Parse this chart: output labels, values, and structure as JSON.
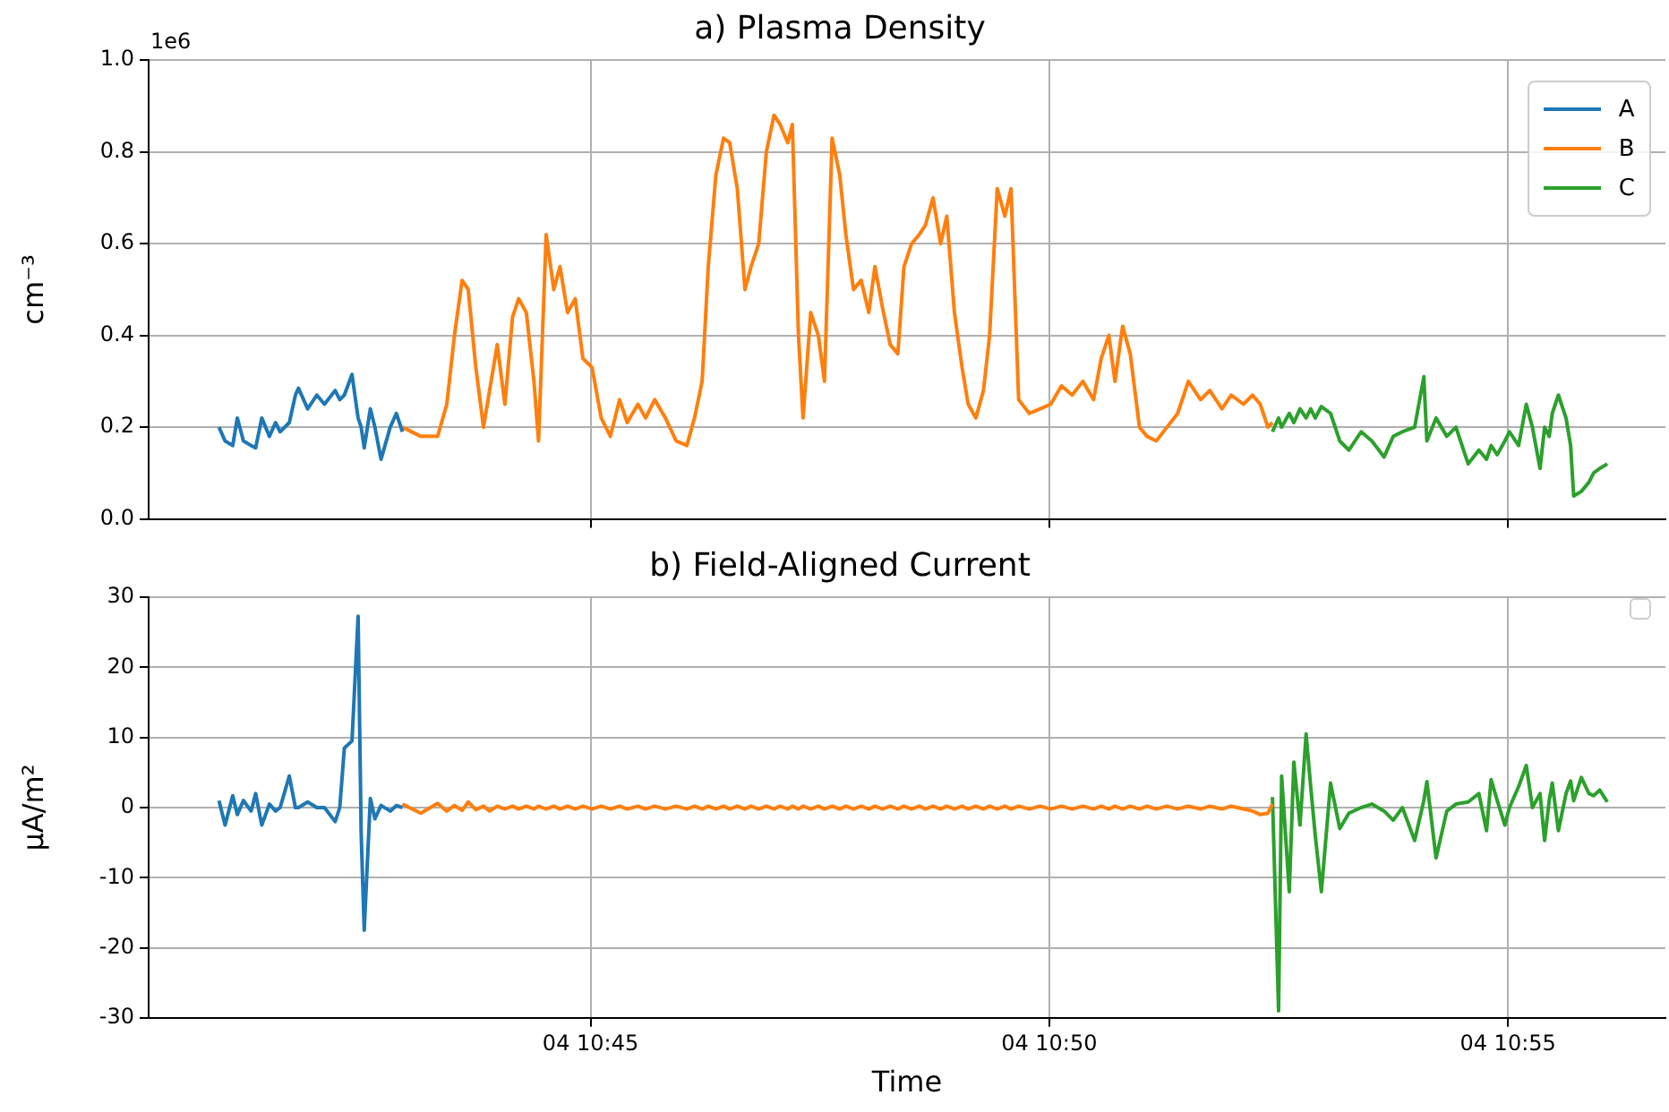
{
  "chart_data": [
    {
      "type": "line",
      "title": "a) Plasma Density",
      "ylabel": "cm⁻³",
      "annotations": [
        "1e6"
      ],
      "legend": "top right",
      "grid": true,
      "tick_labels": "y",
      "xlim": [
        "--01-04T10:40:11",
        "--01-04T10:56:43"
      ],
      "xticks": [
        {
          "value": "--01-04T10:45",
          "label": "04 10:45"
        },
        {
          "value": "--01-04T10:50",
          "label": "04 10:50"
        },
        {
          "value": "--01-04T10:55",
          "label": "04 10:55"
        }
      ],
      "ylim": [
        0,
        1
      ],
      "yticks": [
        {
          "value": 0,
          "label": "0.0"
        },
        0.2,
        0.4,
        0.6,
        0.8,
        {
          "value": 1,
          "label": "1.0"
        }
      ],
      "series": [
        {
          "name": "A",
          "color": "#1f77b4",
          "x": [
            "--01-04T10:40:57",
            "--01-04T10:41:01",
            "--01-04T10:41:06",
            "--01-04T10:41:09",
            "--01-04T10:41:13",
            "--01-04T10:41:18",
            "--01-04T10:41:21",
            "--01-04T10:41:25",
            "--01-04T10:41:30",
            "--01-04T10:41:34",
            "--01-04T10:41:37",
            "--01-04T10:41:43",
            "--01-04T10:41:47",
            "--01-04T10:41:49",
            "--01-04T10:41:55",
            "--01-04T10:42:01",
            "--01-04T10:42:06",
            "--01-04T10:42:13",
            "--01-04T10:42:16",
            "--01-04T10:42:19",
            "--01-04T10:42:24",
            "--01-04T10:42:28",
            "--01-04T10:42:30",
            "--01-04T10:42:32",
            "--01-04T10:42:36",
            "--01-04T10:42:39",
            "--01-04T10:42:43",
            "--01-04T10:42:49",
            "--01-04T10:42:53",
            "--01-04T10:42:57"
          ],
          "values": [
            0.2,
            0.17,
            0.16,
            0.22,
            0.17,
            0.16,
            0.155,
            0.22,
            0.18,
            0.21,
            0.19,
            0.21,
            0.27,
            0.285,
            0.24,
            0.27,
            0.25,
            0.28,
            0.26,
            0.27,
            0.315,
            0.22,
            0.2,
            0.155,
            0.24,
            0.2,
            0.13,
            0.2,
            0.23,
            0.19
          ]
        },
        {
          "name": "B",
          "color": "#ff7f0e",
          "x": [
            "--01-04T10:42:57",
            "--01-04T10:43:09",
            "--01-04T10:43:20",
            "--01-04T10:43:26",
            "--01-04T10:43:31",
            "--01-04T10:43:36",
            "--01-04T10:43:40",
            "--01-04T10:43:45",
            "--01-04T10:43:50",
            "--01-04T10:43:54",
            "--01-04T10:43:59",
            "--01-04T10:44:04",
            "--01-04T10:44:09",
            "--01-04T10:44:13",
            "--01-04T10:44:18",
            "--01-04T10:44:23",
            "--01-04T10:44:26",
            "--01-04T10:44:31",
            "--01-04T10:44:36",
            "--01-04T10:44:40",
            "--01-04T10:44:45",
            "--01-04T10:44:50",
            "--01-04T10:44:55",
            "--01-04T10:45:01",
            "--01-04T10:45:07",
            "--01-04T10:45:13",
            "--01-04T10:45:19",
            "--01-04T10:45:24",
            "--01-04T10:45:31",
            "--01-04T10:45:36",
            "--01-04T10:45:42",
            "--01-04T10:45:49",
            "--01-04T10:45:56",
            "--01-04T10:46:03",
            "--01-04T10:46:08",
            "--01-04T10:46:13",
            "--01-04T10:46:17",
            "--01-04T10:46:22",
            "--01-04T10:46:27",
            "--01-04T10:46:31",
            "--01-04T10:46:36",
            "--01-04T10:46:41",
            "--01-04T10:46:45",
            "--01-04T10:46:50",
            "--01-04T10:46:55",
            "--01-04T10:47:00",
            "--01-04T10:47:04",
            "--01-04T10:47:09",
            "--01-04T10:47:12",
            "--01-04T10:47:16",
            "--01-04T10:47:19",
            "--01-04T10:47:24",
            "--01-04T10:47:29",
            "--01-04T10:47:33",
            "--01-04T10:47:38",
            "--01-04T10:47:43",
            "--01-04T10:47:47",
            "--01-04T10:47:52",
            "--01-04T10:47:57",
            "--01-04T10:48:02",
            "--01-04T10:48:06",
            "--01-04T10:48:11",
            "--01-04T10:48:16",
            "--01-04T10:48:21",
            "--01-04T10:48:25",
            "--01-04T10:48:30",
            "--01-04T10:48:35",
            "--01-04T10:48:39",
            "--01-04T10:48:44",
            "--01-04T10:48:49",
            "--01-04T10:48:53",
            "--01-04T10:48:58",
            "--01-04T10:49:03",
            "--01-04T10:49:07",
            "--01-04T10:49:12",
            "--01-04T10:49:17",
            "--01-04T10:49:21",
            "--01-04T10:49:26",
            "--01-04T10:49:31",
            "--01-04T10:49:35",
            "--01-04T10:49:40",
            "--01-04T10:49:47",
            "--01-04T10:49:54",
            "--01-04T10:50:01",
            "--01-04T10:50:08",
            "--01-04T10:50:15",
            "--01-04T10:50:22",
            "--01-04T10:50:29",
            "--01-04T10:50:34",
            "--01-04T10:50:39",
            "--01-04T10:50:43",
            "--01-04T10:50:48",
            "--01-04T10:50:53",
            "--01-04T10:50:59",
            "--01-04T10:51:04",
            "--01-04T10:51:10",
            "--01-04T10:51:17",
            "--01-04T10:51:24",
            "--01-04T10:51:31",
            "--01-04T10:51:39",
            "--01-04T10:51:45",
            "--01-04T10:51:53",
            "--01-04T10:51:59",
            "--01-04T10:52:07",
            "--01-04T10:52:13",
            "--01-04T10:52:18",
            "--01-04T10:52:23",
            "--01-04T10:52:26"
          ],
          "values": [
            0.2,
            0.18,
            0.18,
            0.25,
            0.4,
            0.52,
            0.5,
            0.33,
            0.2,
            0.28,
            0.38,
            0.25,
            0.44,
            0.48,
            0.45,
            0.3,
            0.17,
            0.62,
            0.5,
            0.55,
            0.45,
            0.48,
            0.35,
            0.33,
            0.22,
            0.18,
            0.26,
            0.21,
            0.25,
            0.22,
            0.26,
            0.22,
            0.17,
            0.16,
            0.22,
            0.3,
            0.55,
            0.75,
            0.83,
            0.82,
            0.72,
            0.5,
            0.55,
            0.6,
            0.8,
            0.88,
            0.86,
            0.82,
            0.86,
            0.4,
            0.22,
            0.45,
            0.4,
            0.3,
            0.83,
            0.75,
            0.62,
            0.5,
            0.52,
            0.45,
            0.55,
            0.46,
            0.38,
            0.36,
            0.55,
            0.6,
            0.62,
            0.64,
            0.7,
            0.6,
            0.66,
            0.45,
            0.33,
            0.25,
            0.22,
            0.28,
            0.4,
            0.72,
            0.66,
            0.72,
            0.26,
            0.23,
            0.24,
            0.25,
            0.29,
            0.27,
            0.3,
            0.26,
            0.35,
            0.4,
            0.3,
            0.42,
            0.36,
            0.2,
            0.18,
            0.17,
            0.2,
            0.23,
            0.3,
            0.26,
            0.28,
            0.24,
            0.27,
            0.25,
            0.27,
            0.25,
            0.2,
            0.21
          ]
        },
        {
          "name": "C",
          "color": "#2ca02c",
          "x": [
            "--01-04T10:52:26",
            "--01-04T10:52:30",
            "--01-04T10:52:32",
            "--01-04T10:52:37",
            "--01-04T10:52:40",
            "--01-04T10:52:44",
            "--01-04T10:52:48",
            "--01-04T10:52:51",
            "--01-04T10:52:54",
            "--01-04T10:52:58",
            "--01-04T10:53:04",
            "--01-04T10:53:10",
            "--01-04T10:53:16",
            "--01-04T10:53:24",
            "--01-04T10:53:31",
            "--01-04T10:53:39",
            "--01-04T10:53:45",
            "--01-04T10:53:51",
            "--01-04T10:53:59",
            "--01-04T10:54:05",
            "--01-04T10:54:07",
            "--01-04T10:54:13",
            "--01-04T10:54:20",
            "--01-04T10:54:26",
            "--01-04T10:54:34",
            "--01-04T10:54:41",
            "--01-04T10:54:46",
            "--01-04T10:54:49",
            "--01-04T10:54:53",
            "--01-04T10:54:58",
            "--01-04T10:55:01",
            "--01-04T10:55:07",
            "--01-04T10:55:12",
            "--01-04T10:55:16",
            "--01-04T10:55:21",
            "--01-04T10:55:24",
            "--01-04T10:55:27",
            "--01-04T10:55:29",
            "--01-04T10:55:33",
            "--01-04T10:55:38",
            "--01-04T10:55:41",
            "--01-04T10:55:43",
            "--01-04T10:55:48",
            "--01-04T10:55:53",
            "--01-04T10:55:56",
            "--01-04T10:56:00",
            "--01-04T10:56:05"
          ],
          "values": [
            0.19,
            0.22,
            0.2,
            0.23,
            0.21,
            0.24,
            0.22,
            0.24,
            0.22,
            0.245,
            0.23,
            0.17,
            0.15,
            0.19,
            0.17,
            0.135,
            0.18,
            0.19,
            0.2,
            0.31,
            0.17,
            0.22,
            0.18,
            0.2,
            0.12,
            0.15,
            0.13,
            0.16,
            0.14,
            0.17,
            0.19,
            0.16,
            0.25,
            0.2,
            0.11,
            0.2,
            0.18,
            0.23,
            0.27,
            0.22,
            0.16,
            0.05,
            0.06,
            0.08,
            0.1,
            0.11,
            0.12
          ]
        }
      ]
    },
    {
      "type": "line",
      "title": "b) Field-Aligned Current",
      "xlabel": "Time",
      "ylabel": "μA/m²",
      "grid": true,
      "xlim": [
        "--01-04T10:40:11",
        "--01-04T10:56:43"
      ],
      "xticks": [
        {
          "value": "--01-04T10:45",
          "label": "04 10:45"
        },
        {
          "value": "--01-04T10:50",
          "label": "04 10:50"
        },
        {
          "value": "--01-04T10:55",
          "label": "04 10:55"
        }
      ],
      "ylim": [
        -30,
        30
      ],
      "yticks": [
        -30,
        -20,
        -10,
        0,
        10,
        20,
        30
      ],
      "series": [
        {
          "color": "#1f77b4",
          "x": [
            "--01-04T10:40:57",
            "--01-04T10:41:01",
            "--01-04T10:41:06",
            "--01-04T10:41:09",
            "--01-04T10:41:13",
            "--01-04T10:41:18",
            "--01-04T10:41:21",
            "--01-04T10:41:25",
            "--01-04T10:41:30",
            "--01-04T10:41:34",
            "--01-04T10:41:37",
            "--01-04T10:41:43",
            "--01-04T10:41:47",
            "--01-04T10:41:49",
            "--01-04T10:41:55",
            "--01-04T10:42:01",
            "--01-04T10:42:06",
            "--01-04T10:42:13",
            "--01-04T10:42:16",
            "--01-04T10:42:19",
            "--01-04T10:42:24",
            "--01-04T10:42:28",
            "--01-04T10:42:30",
            "--01-04T10:42:32",
            "--01-04T10:42:36",
            "--01-04T10:42:39",
            "--01-04T10:42:43",
            "--01-04T10:42:49",
            "--01-04T10:42:53",
            "--01-04T10:42:57"
          ],
          "values": [
            1,
            -2.5,
            1.7,
            -1,
            1,
            -0.5,
            2,
            -2.5,
            0.5,
            -0.5,
            0,
            4.5,
            0,
            0,
            0.8,
            0,
            0,
            -2,
            0,
            8.5,
            9.5,
            27.3,
            -3.7,
            -17.5,
            1.3,
            -1.6,
            0.3,
            -0.5,
            0.3,
            0
          ]
        },
        {
          "color": "#ff7f0e",
          "x": [
            "--01-04T10:42:57",
            "--01-04T10:43:09",
            "--01-04T10:43:20",
            "--01-04T10:43:26",
            "--01-04T10:43:31",
            "--01-04T10:43:36",
            "--01-04T10:43:40",
            "--01-04T10:43:45",
            "--01-04T10:43:50",
            "--01-04T10:43:54",
            "--01-04T10:43:59",
            "--01-04T10:44:04",
            "--01-04T10:44:09",
            "--01-04T10:44:13",
            "--01-04T10:44:18",
            "--01-04T10:44:23",
            "--01-04T10:44:26",
            "--01-04T10:44:31",
            "--01-04T10:44:36",
            "--01-04T10:44:40",
            "--01-04T10:44:45",
            "--01-04T10:44:50",
            "--01-04T10:44:55",
            "--01-04T10:45:01",
            "--01-04T10:45:07",
            "--01-04T10:45:13",
            "--01-04T10:45:19",
            "--01-04T10:45:24",
            "--01-04T10:45:31",
            "--01-04T10:45:36",
            "--01-04T10:45:42",
            "--01-04T10:45:49",
            "--01-04T10:45:56",
            "--01-04T10:46:03",
            "--01-04T10:46:08",
            "--01-04T10:46:13",
            "--01-04T10:46:17",
            "--01-04T10:46:22",
            "--01-04T10:46:27",
            "--01-04T10:46:31",
            "--01-04T10:46:36",
            "--01-04T10:46:41",
            "--01-04T10:46:45",
            "--01-04T10:46:50",
            "--01-04T10:46:55",
            "--01-04T10:47:00",
            "--01-04T10:47:04",
            "--01-04T10:47:09",
            "--01-04T10:47:12",
            "--01-04T10:47:16",
            "--01-04T10:47:19",
            "--01-04T10:47:24",
            "--01-04T10:47:29",
            "--01-04T10:47:33",
            "--01-04T10:47:38",
            "--01-04T10:47:43",
            "--01-04T10:47:47",
            "--01-04T10:47:52",
            "--01-04T10:47:57",
            "--01-04T10:48:02",
            "--01-04T10:48:06",
            "--01-04T10:48:11",
            "--01-04T10:48:16",
            "--01-04T10:48:21",
            "--01-04T10:48:25",
            "--01-04T10:48:30",
            "--01-04T10:48:35",
            "--01-04T10:48:39",
            "--01-04T10:48:44",
            "--01-04T10:48:49",
            "--01-04T10:48:53",
            "--01-04T10:48:58",
            "--01-04T10:49:03",
            "--01-04T10:49:07",
            "--01-04T10:49:12",
            "--01-04T10:49:17",
            "--01-04T10:49:21",
            "--01-04T10:49:26",
            "--01-04T10:49:31",
            "--01-04T10:49:35",
            "--01-04T10:49:40",
            "--01-04T10:49:47",
            "--01-04T10:49:54",
            "--01-04T10:50:01",
            "--01-04T10:50:08",
            "--01-04T10:50:15",
            "--01-04T10:50:22",
            "--01-04T10:50:29",
            "--01-04T10:50:34",
            "--01-04T10:50:39",
            "--01-04T10:50:43",
            "--01-04T10:50:48",
            "--01-04T10:50:53",
            "--01-04T10:50:59",
            "--01-04T10:51:04",
            "--01-04T10:51:10",
            "--01-04T10:51:17",
            "--01-04T10:51:24",
            "--01-04T10:51:31",
            "--01-04T10:51:39",
            "--01-04T10:51:45",
            "--01-04T10:51:53",
            "--01-04T10:51:59",
            "--01-04T10:52:07",
            "--01-04T10:52:13",
            "--01-04T10:52:18",
            "--01-04T10:52:23",
            "--01-04T10:52:26"
          ],
          "values": [
            0.5,
            -0.8,
            0.6,
            -0.5,
            0.3,
            -0.4,
            0.8,
            -0.3,
            0.2,
            -0.5,
            0.2,
            -0.2,
            0.2,
            -0.2,
            0.2,
            -0.2,
            0.2,
            -0.2,
            0.2,
            -0.2,
            0.2,
            -0.2,
            0.2,
            -0.2,
            0.2,
            -0.2,
            0.2,
            -0.2,
            0.2,
            -0.2,
            0.2,
            -0.2,
            0.2,
            -0.2,
            0.2,
            -0.2,
            0.2,
            -0.2,
            0.2,
            -0.2,
            0.2,
            -0.2,
            0.2,
            -0.2,
            0.2,
            -0.2,
            0.2,
            -0.2,
            0.2,
            -0.2,
            0.2,
            -0.2,
            0.2,
            -0.2,
            0.2,
            -0.2,
            0.2,
            -0.2,
            0.2,
            -0.2,
            0.2,
            -0.2,
            0.2,
            -0.2,
            0.2,
            -0.2,
            0.2,
            -0.2,
            0.2,
            -0.2,
            0.2,
            -0.2,
            0.2,
            -0.2,
            0.2,
            -0.2,
            0.2,
            -0.2,
            0.2,
            -0.2,
            0.2,
            -0.2,
            0.2,
            -0.2,
            0.2,
            -0.2,
            0.2,
            -0.2,
            0.2,
            -0.2,
            0.2,
            -0.2,
            0.2,
            -0.2,
            0.2,
            -0.2,
            0.2,
            -0.2,
            0.2,
            -0.2,
            0.2,
            -0.2,
            0.2,
            -0.2,
            -0.5,
            -1,
            -0.8,
            0.5
          ]
        },
        {
          "color": "#2ca02c",
          "x": [
            "--01-04T10:52:26",
            "--01-04T10:52:30",
            "--01-04T10:52:32",
            "--01-04T10:52:37",
            "--01-04T10:52:40",
            "--01-04T10:52:44",
            "--01-04T10:52:48",
            "--01-04T10:52:51",
            "--01-04T10:52:54",
            "--01-04T10:52:58",
            "--01-04T10:53:04",
            "--01-04T10:53:10",
            "--01-04T10:53:16",
            "--01-04T10:53:24",
            "--01-04T10:53:31",
            "--01-04T10:53:39",
            "--01-04T10:53:45",
            "--01-04T10:53:51",
            "--01-04T10:53:59",
            "--01-04T10:54:05",
            "--01-04T10:54:07",
            "--01-04T10:54:13",
            "--01-04T10:54:20",
            "--01-04T10:54:26",
            "--01-04T10:54:34",
            "--01-04T10:54:41",
            "--01-04T10:54:46",
            "--01-04T10:54:49",
            "--01-04T10:54:53",
            "--01-04T10:54:58",
            "--01-04T10:55:01",
            "--01-04T10:55:07",
            "--01-04T10:55:12",
            "--01-04T10:55:16",
            "--01-04T10:55:21",
            "--01-04T10:55:24",
            "--01-04T10:55:27",
            "--01-04T10:55:29",
            "--01-04T10:55:33",
            "--01-04T10:55:38",
            "--01-04T10:55:41",
            "--01-04T10:55:43",
            "--01-04T10:55:48",
            "--01-04T10:55:53",
            "--01-04T10:55:56",
            "--01-04T10:56:00",
            "--01-04T10:56:05"
          ],
          "values": [
            1.5,
            -29,
            4.5,
            -12,
            6.5,
            -2.5,
            10.5,
            3,
            -4,
            -12,
            3.5,
            -3,
            -0.8,
            0,
            0.5,
            -0.5,
            -1.8,
            0,
            -4.7,
            1,
            3.7,
            -7.2,
            -0.5,
            0.5,
            0.8,
            2,
            -3.3,
            4,
            1,
            -2.5,
            0,
            3,
            6,
            0,
            2,
            -4.7,
            1,
            3.5,
            -3.3,
            2,
            3.8,
            1,
            4.3,
            2,
            1.7,
            2.5,
            0.8
          ]
        }
      ]
    }
  ]
}
